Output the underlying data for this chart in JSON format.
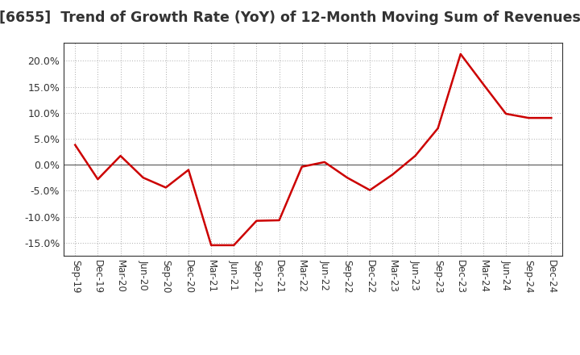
{
  "title": "[6655]  Trend of Growth Rate (YoY) of 12-Month Moving Sum of Revenues",
  "title_fontsize": 12.5,
  "line_color": "#cc0000",
  "line_width": 1.8,
  "background_color": "#ffffff",
  "grid_color": "#aaaaaa",
  "ylim": [
    -0.175,
    0.235
  ],
  "yticks": [
    -0.15,
    -0.1,
    -0.05,
    0.0,
    0.05,
    0.1,
    0.15,
    0.2
  ],
  "x_labels": [
    "Sep-19",
    "Dec-19",
    "Mar-20",
    "Jun-20",
    "Sep-20",
    "Dec-20",
    "Mar-21",
    "Jun-21",
    "Sep-21",
    "Dec-21",
    "Mar-22",
    "Jun-22",
    "Sep-22",
    "Dec-22",
    "Mar-23",
    "Jun-23",
    "Sep-23",
    "Dec-23",
    "Mar-24",
    "Jun-24",
    "Sep-24",
    "Dec-24"
  ],
  "y_values": [
    0.038,
    -0.028,
    0.017,
    -0.025,
    -0.044,
    -0.01,
    -0.155,
    -0.155,
    -0.108,
    -0.107,
    -0.004,
    0.005,
    -0.025,
    -0.049,
    -0.019,
    0.017,
    0.07,
    0.213,
    0.155,
    0.098,
    0.09,
    0.09
  ]
}
